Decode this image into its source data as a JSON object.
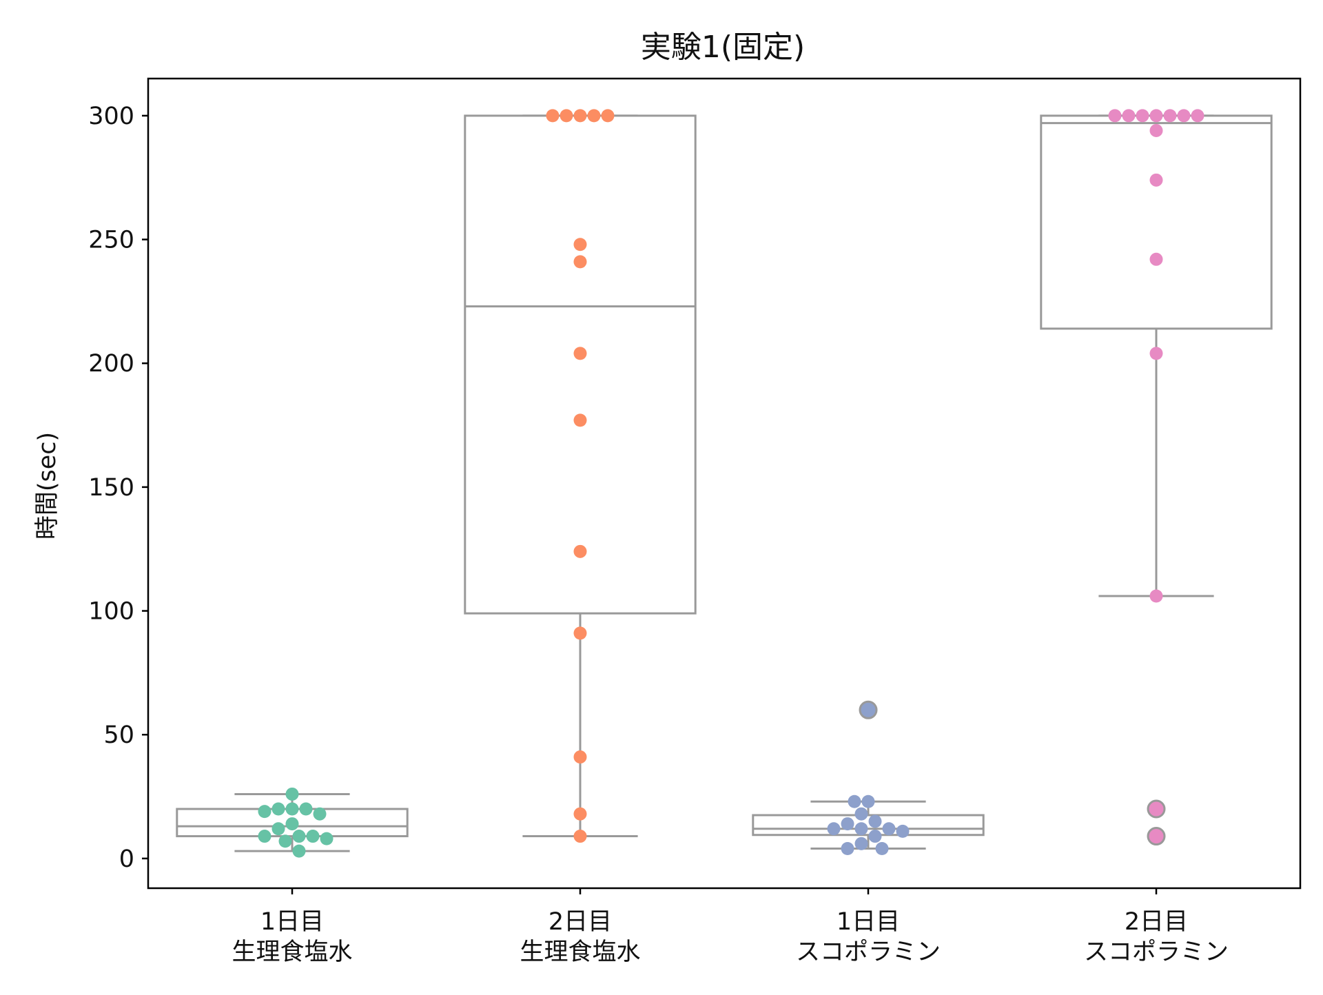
{
  "chart_data": {
    "type": "box",
    "title": "実験1(固定)",
    "xlabel": "",
    "ylabel": "時間(sec)",
    "ylim": [
      -12,
      315
    ],
    "yticks": [
      0,
      50,
      100,
      150,
      200,
      250,
      300
    ],
    "grid": false,
    "legend": "none",
    "categories": [
      {
        "line1": "1日目",
        "line2": "生理食塩水"
      },
      {
        "line1": "2日目",
        "line2": "生理食塩水"
      },
      {
        "line1": "1日目",
        "line2": "スコポラミン"
      },
      {
        "line1": "2日目",
        "line2": "スコポラミン"
      }
    ],
    "boxes": [
      {
        "whisker_low": 3,
        "q1": 9,
        "median": 13,
        "q3": 20,
        "whisker_high": 26,
        "outliers": []
      },
      {
        "whisker_low": 9,
        "q1": 99,
        "median": 223,
        "q3": 300,
        "whisker_high": 300,
        "outliers": []
      },
      {
        "whisker_low": 4,
        "q1": 9.5,
        "median": 12,
        "q3": 17.5,
        "whisker_high": 23,
        "outliers": [
          60
        ]
      },
      {
        "whisker_low": 106,
        "q1": 214,
        "median": 297,
        "q3": 300,
        "whisker_high": 300,
        "outliers": [
          9,
          20
        ]
      }
    ],
    "points": [
      [
        26,
        20,
        20,
        20,
        19,
        18,
        14,
        12,
        9,
        9,
        9,
        8,
        7,
        3
      ],
      [
        300,
        300,
        300,
        300,
        300,
        248,
        241,
        204,
        177,
        124,
        91,
        41,
        18,
        9
      ],
      [
        60,
        23,
        23,
        18,
        15,
        14,
        12,
        12,
        12,
        11,
        9,
        6,
        4,
        4
      ],
      [
        300,
        300,
        300,
        300,
        300,
        300,
        300,
        294,
        274,
        242,
        204,
        106,
        20,
        9
      ]
    ],
    "colors": {
      "series": [
        "#66c2a5",
        "#fc8d62",
        "#8da0cb",
        "#e78ac3"
      ],
      "box_line": "#999999",
      "axis": "#000000"
    }
  }
}
